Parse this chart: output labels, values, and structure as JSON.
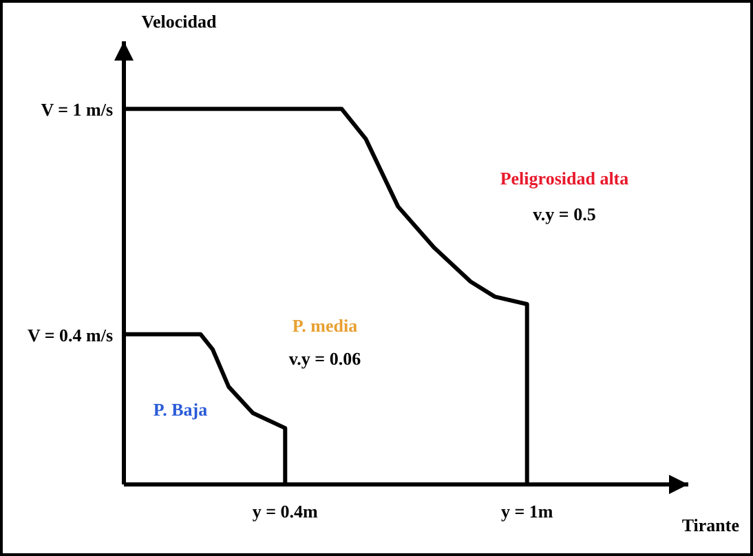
{
  "chart_data": {
    "type": "line",
    "xlabel": "Tirante",
    "ylabel": "Velocidad",
    "xlim": [
      0,
      1.4
    ],
    "ylim": [
      0,
      1.18
    ],
    "xticks": [
      {
        "value": 0.4,
        "label": "y = 0.4m"
      },
      {
        "value": 1,
        "label": "y = 1m"
      }
    ],
    "yticks": [
      {
        "value": 0.4,
        "label": "V = 0.4 m/s"
      },
      {
        "value": 1,
        "label": "V = 1 m/s"
      }
    ],
    "grid": false,
    "marker": "none",
    "line_style": "solid",
    "series": [
      {
        "color": "#000000",
        "x": [
          0,
          0.19,
          0.22,
          0.26,
          0.32,
          0.4,
          0.4
        ],
        "values": [
          0.4,
          0.4,
          0.36,
          0.26,
          0.19,
          0.15,
          0
        ]
      },
      {
        "color": "#000000",
        "x": [
          0,
          0.54,
          0.6,
          0.68,
          0.77,
          0.86,
          0.92,
          1,
          1
        ],
        "values": [
          1,
          1,
          0.92,
          0.74,
          0.63,
          0.54,
          0.5,
          0.48,
          0
        ]
      }
    ],
    "annotations": [
      "Peligrosidad alta",
      "v.y = 0.5",
      "P. media",
      "v.y = 0.06",
      "P. Baja"
    ]
  }
}
